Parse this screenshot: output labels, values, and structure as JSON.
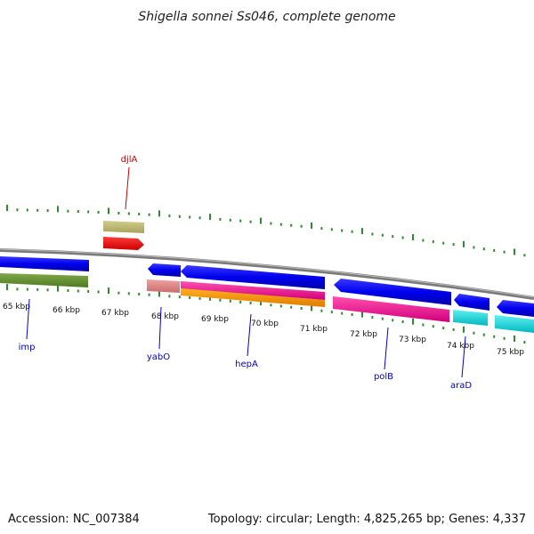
{
  "title": "Shigella sonnei Ss046, complete genome",
  "footer": {
    "accession": "Accession: NC_007384",
    "summary": "Topology: circular; Length: 4,825,265 bp; Genes: 4,337"
  },
  "colors": {
    "backbone": "#808080",
    "ticks": "#2e8b2e",
    "label_blue": "#0000cc",
    "label_red": "#cc0000"
  },
  "scale_labels": [
    "65 kbp",
    "66 kbp",
    "67 kbp",
    "68 kbp",
    "69 kbp",
    "70 kbp",
    "71 kbp",
    "72 kbp",
    "73 kbp",
    "74 kbp",
    "75 kbp"
  ],
  "gene_labels": [
    "imp",
    "yabO",
    "hepA",
    "polB",
    "araD",
    "djlA"
  ]
}
